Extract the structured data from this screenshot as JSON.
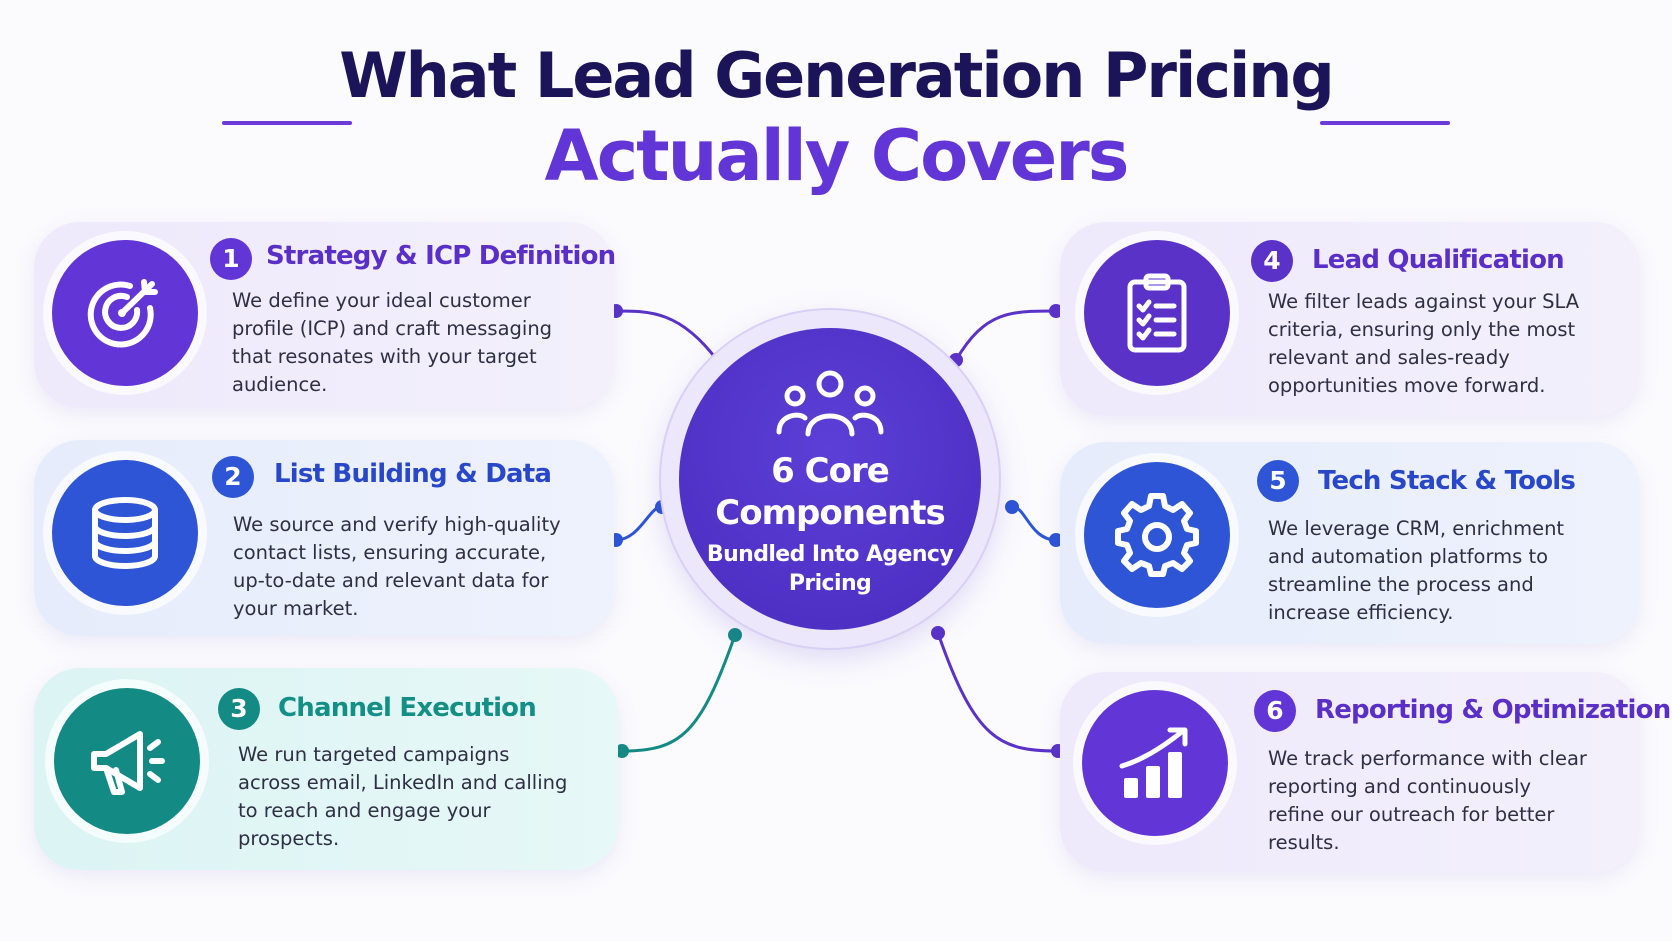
{
  "title": {
    "line1": "What Lead Generation Pricing",
    "line2": "Actually Covers"
  },
  "hub": {
    "title": "6 Core Components",
    "subtitle": "Bundled Into Agency Pricing",
    "icon": "users-group-icon",
    "color": "#4a2bbf"
  },
  "components": [
    {
      "number": "1",
      "title": "Strategy & ICP Definition",
      "description": "We define your ideal customer profile (ICP) and craft messaging that resonates with your target audience.",
      "icon": "target-arrow-icon",
      "color": "#6236d6"
    },
    {
      "number": "2",
      "title": "List Building & Data",
      "description": "We source and verify high-quality contact lists, ensuring accurate, up-to-date and relevant data for your market.",
      "icon": "database-icon",
      "color": "#2d55d6"
    },
    {
      "number": "3",
      "title": "Channel Execution",
      "description": "We run targeted campaigns across email, LinkedIn and calling to reach and engage your prospects.",
      "icon": "megaphone-icon",
      "color": "#148a84"
    },
    {
      "number": "4",
      "title": "Lead Qualification",
      "description": "We filter leads against your SLA criteria, ensuring only the most relevant and sales-ready opportunities move forward.",
      "icon": "clipboard-checklist-icon",
      "color": "#5a32c8"
    },
    {
      "number": "5",
      "title": "Tech Stack & Tools",
      "description": "We leverage CRM, enrichment and automation platforms to streamline the process and increase efficiency.",
      "icon": "gear-icon",
      "color": "#2d55d6"
    },
    {
      "number": "6",
      "title": "Reporting & Optimization",
      "description": "We track performance with clear reporting and continuously refine our outreach for better results.",
      "icon": "growth-chart-icon",
      "color": "#6236d6"
    }
  ]
}
